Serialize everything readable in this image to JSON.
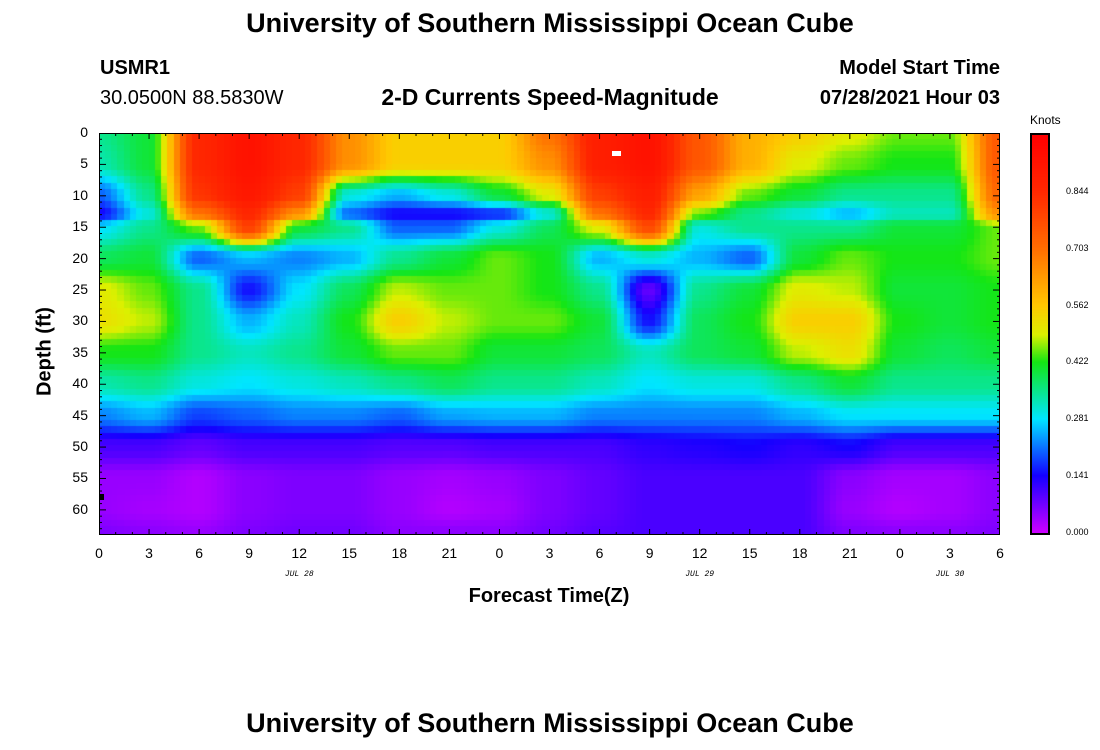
{
  "header": {
    "title": "University of Southern Mississippi Ocean Cube",
    "station": "USMR1",
    "location": "30.0500N  88.5830W",
    "subtitle": "2-D Currents Speed-Magnitude",
    "model_label": "Model Start Time",
    "model_time": "07/28/2021 Hour 03"
  },
  "footer": {
    "title": "University of Southern Mississippi Ocean Cube"
  },
  "colorbar": {
    "unit": "Knots",
    "ticks": [
      "0.844",
      "0.703",
      "0.562",
      "0.422",
      "0.281",
      "0.141",
      "0.000"
    ],
    "min": 0.0,
    "max": 0.984
  },
  "chart_data": {
    "type": "heatmap",
    "title": "2-D Currents Speed-Magnitude",
    "xlabel": "Forecast Time(Z)",
    "ylabel": "Depth (ft)",
    "x_ticks": [
      "0",
      "3",
      "6",
      "9",
      "12",
      "15",
      "18",
      "21",
      "0",
      "3",
      "6",
      "9",
      "12",
      "15",
      "18",
      "21",
      "0",
      "3",
      "6"
    ],
    "date_labels": [
      "JUL 28",
      "JUL 29",
      "JUL 30"
    ],
    "y_ticks": [
      "0",
      "5",
      "10",
      "15",
      "20",
      "25",
      "30",
      "35",
      "40",
      "45",
      "50",
      "55",
      "60"
    ],
    "x_range_hours": [
      0,
      54
    ],
    "y_range_ft": [
      0,
      64
    ],
    "depths_ft": [
      0,
      5,
      10,
      13,
      15,
      20,
      25,
      30,
      35,
      40,
      45,
      50,
      55,
      60,
      64
    ],
    "hours": [
      0,
      3,
      6,
      9,
      12,
      15,
      18,
      21,
      24,
      27,
      30,
      33,
      36,
      39,
      42,
      45,
      48,
      51,
      54
    ],
    "values": [
      [
        0.35,
        0.4,
        0.85,
        0.92,
        0.85,
        0.65,
        0.55,
        0.55,
        0.55,
        0.7,
        0.88,
        0.92,
        0.75,
        0.6,
        0.55,
        0.5,
        0.45,
        0.45,
        0.75
      ],
      [
        0.33,
        0.4,
        0.85,
        0.92,
        0.85,
        0.65,
        0.55,
        0.55,
        0.55,
        0.65,
        0.88,
        0.92,
        0.75,
        0.6,
        0.5,
        0.45,
        0.42,
        0.42,
        0.75
      ],
      [
        0.2,
        0.35,
        0.82,
        0.9,
        0.8,
        0.3,
        0.25,
        0.3,
        0.4,
        0.5,
        0.8,
        0.88,
        0.62,
        0.45,
        0.4,
        0.35,
        0.35,
        0.35,
        0.72
      ],
      [
        0.14,
        0.3,
        0.7,
        0.85,
        0.65,
        0.2,
        0.14,
        0.14,
        0.16,
        0.3,
        0.7,
        0.85,
        0.45,
        0.35,
        0.3,
        0.25,
        0.32,
        0.32,
        0.65
      ],
      [
        0.28,
        0.35,
        0.45,
        0.8,
        0.4,
        0.35,
        0.2,
        0.2,
        0.3,
        0.38,
        0.5,
        0.78,
        0.3,
        0.35,
        0.35,
        0.35,
        0.4,
        0.4,
        0.45
      ],
      [
        0.38,
        0.4,
        0.2,
        0.25,
        0.22,
        0.25,
        0.35,
        0.4,
        0.45,
        0.42,
        0.25,
        0.3,
        0.25,
        0.2,
        0.4,
        0.45,
        0.42,
        0.42,
        0.45
      ],
      [
        0.5,
        0.45,
        0.35,
        0.15,
        0.28,
        0.38,
        0.48,
        0.45,
        0.45,
        0.42,
        0.35,
        0.08,
        0.35,
        0.4,
        0.5,
        0.48,
        0.4,
        0.4,
        0.42
      ],
      [
        0.52,
        0.48,
        0.35,
        0.25,
        0.32,
        0.42,
        0.55,
        0.48,
        0.45,
        0.45,
        0.4,
        0.15,
        0.38,
        0.42,
        0.55,
        0.55,
        0.42,
        0.4,
        0.42
      ],
      [
        0.42,
        0.42,
        0.35,
        0.32,
        0.35,
        0.4,
        0.45,
        0.45,
        0.4,
        0.4,
        0.38,
        0.32,
        0.38,
        0.4,
        0.48,
        0.52,
        0.4,
        0.38,
        0.4
      ],
      [
        0.33,
        0.35,
        0.3,
        0.28,
        0.3,
        0.32,
        0.35,
        0.38,
        0.35,
        0.35,
        0.32,
        0.28,
        0.3,
        0.3,
        0.35,
        0.4,
        0.35,
        0.35,
        0.35
      ],
      [
        0.22,
        0.25,
        0.18,
        0.2,
        0.22,
        0.22,
        0.2,
        0.24,
        0.25,
        0.25,
        0.22,
        0.22,
        0.22,
        0.22,
        0.25,
        0.28,
        0.28,
        0.28,
        0.28
      ],
      [
        0.1,
        0.1,
        0.08,
        0.1,
        0.1,
        0.1,
        0.09,
        0.09,
        0.1,
        0.1,
        0.1,
        0.12,
        0.13,
        0.14,
        0.12,
        0.14,
        0.1,
        0.1,
        0.1
      ],
      [
        0.04,
        0.04,
        0.02,
        0.05,
        0.06,
        0.06,
        0.04,
        0.03,
        0.04,
        0.06,
        0.08,
        0.1,
        0.1,
        0.1,
        0.1,
        0.05,
        0.03,
        0.03,
        0.05
      ],
      [
        0.04,
        0.03,
        0.02,
        0.05,
        0.06,
        0.06,
        0.04,
        0.02,
        0.03,
        0.06,
        0.08,
        0.1,
        0.1,
        0.1,
        0.1,
        0.04,
        0.02,
        0.03,
        0.05
      ],
      [
        0.06,
        0.05,
        0.04,
        0.06,
        0.07,
        0.07,
        0.05,
        0.05,
        0.05,
        0.07,
        0.09,
        0.1,
        0.1,
        0.1,
        0.1,
        0.06,
        0.05,
        0.05,
        0.06
      ]
    ]
  }
}
